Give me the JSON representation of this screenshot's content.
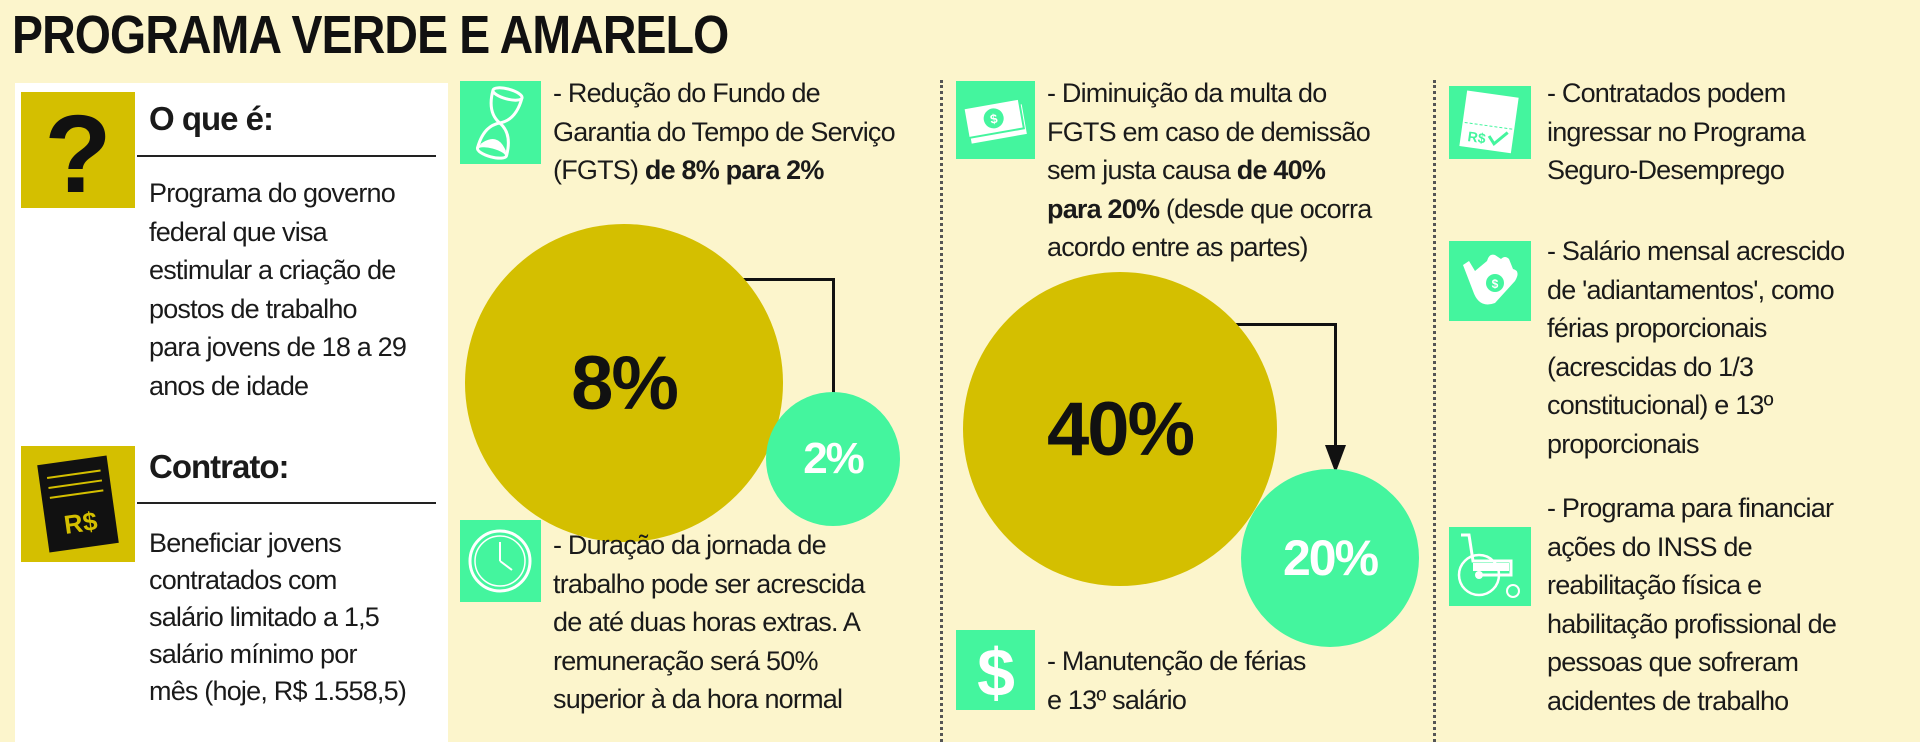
{
  "title": "PROGRAMA VERDE E AMARELO",
  "colors": {
    "background": "#fcf5cc",
    "olive": "#d4bf00",
    "green": "#44f59e"
  },
  "left_panel": {
    "what": {
      "icon": "question-mark-icon",
      "heading": "O que é:",
      "lines": [
        "Programa do governo",
        "federal que visa",
        "estimular a criação de",
        "postos de trabalho",
        "para jovens de 18 a 29",
        "anos de idade"
      ]
    },
    "contract": {
      "icon": "contract-document-icon",
      "icon_label": "R$",
      "heading": "Contrato:",
      "lines": [
        "Beneficiar jovens",
        "contratados com",
        "salário limitado a 1,5",
        "salário mínimo por",
        "mês (hoje, R$ 1.558,5)"
      ]
    }
  },
  "column2": {
    "fgts": {
      "icon": "hourglass-icon",
      "lines": [
        "- Redução do Fundo de",
        "Garantia do Tempo de Serviço"
      ],
      "line3_normal": "(FGTS) ",
      "line3_bold": "de 8% para 2%"
    },
    "from_value": "8%",
    "to_value": "2%",
    "journey": {
      "icon": "clock-icon",
      "lines": [
        "- Duração da jornada de",
        "trabalho pode ser acrescida",
        "de até duas horas extras. A",
        "remuneração será 50%",
        "superior à da hora normal"
      ]
    }
  },
  "column3": {
    "fine": {
      "icon": "money-bills-icon",
      "line1": "- Diminuição da multa do",
      "line2": "FGTS em caso de demissão",
      "line3_normal": "sem justa causa ",
      "line3_bold": "de 40%",
      "line4_bold": "para 20%",
      "line4_normal": " (desde que ocorra",
      "line5": "acordo entre as partes)"
    },
    "from_value": "40%",
    "to_value": "20%",
    "vacation": {
      "icon": "dollar-sign-icon",
      "lines": [
        "- Manutenção de férias",
        "e 13º salário"
      ]
    }
  },
  "column4": {
    "items": [
      {
        "icon": "unemployment-check-icon",
        "icon_label": "R$",
        "lines": [
          "- Contratados podem",
          "ingressar no Programa",
          "Seguro-Desemprego"
        ]
      },
      {
        "icon": "hand-coin-icon",
        "lines": [
          "- Salário mensal acrescido",
          "de 'adiantamentos', como",
          "férias proporcionais",
          "(acrescidas do 1/3",
          "constitucional) e 13º",
          "proporcionais"
        ]
      },
      {
        "icon": "wheelchair-icon",
        "lines": [
          "- Programa para financiar",
          "ações do INSS de",
          "reabilitação física e",
          "habilitação profissional de",
          "pessoas que sofreram",
          "acidentes de trabalho"
        ]
      }
    ]
  }
}
